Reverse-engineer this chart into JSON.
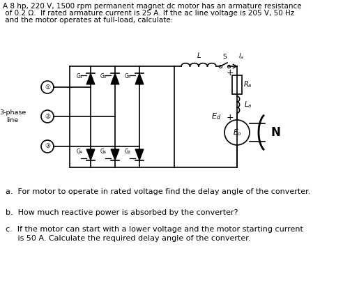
{
  "title_line1": "A 8 hp, 220 V, 1500 rpm permanent magnet dc motor has an armature resistance",
  "title_line2": " of 0.2 Ω.  If rated armature current is 25 A. If the ac line voltage is 205 V, 50 Hz",
  "title_line3": " and the motor operates at full-load, calculate:",
  "question_a": "a.  For motor to operate in rated voltage find the delay angle of the converter.",
  "question_b": "b.  How much reactive power is absorbed by the converter?",
  "question_c1": "c.  If the motor can start with a lower voltage and the motor starting current",
  "question_c2": "     is 50 A. Calculate the required delay angle of the converter.",
  "bg_color": "#ffffff",
  "line_color": "#000000",
  "text_color": "#000000",
  "font_size_title": 7.5,
  "font_size_questions": 8.0
}
